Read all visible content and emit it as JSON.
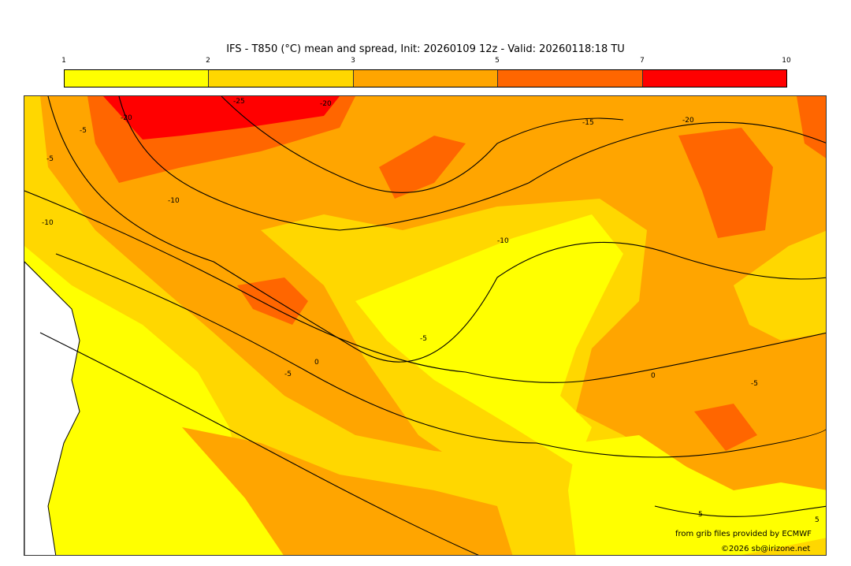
{
  "title": "IFS - T850 (°C) mean and spread, Init: 20260109 12z - Valid: 20260118:18 TU",
  "colorbar": {
    "ticks": [
      "1",
      "2",
      "3",
      "5",
      "7",
      "10"
    ],
    "colors": [
      "#FFFF00",
      "#FFD700",
      "#FFA500",
      "#FF6600",
      "#FF0000"
    ]
  },
  "contour_labels": [
    "-25",
    "-20",
    "-20",
    "-15",
    "-20",
    "-10",
    "-10",
    "-5",
    "-5",
    "-10",
    "-5",
    "-5",
    "0",
    "-5",
    "0",
    "5",
    "5"
  ],
  "credits": {
    "source": "from grib files provided by ECMWF",
    "copyright": "©2026 sb@irizone.net"
  }
}
